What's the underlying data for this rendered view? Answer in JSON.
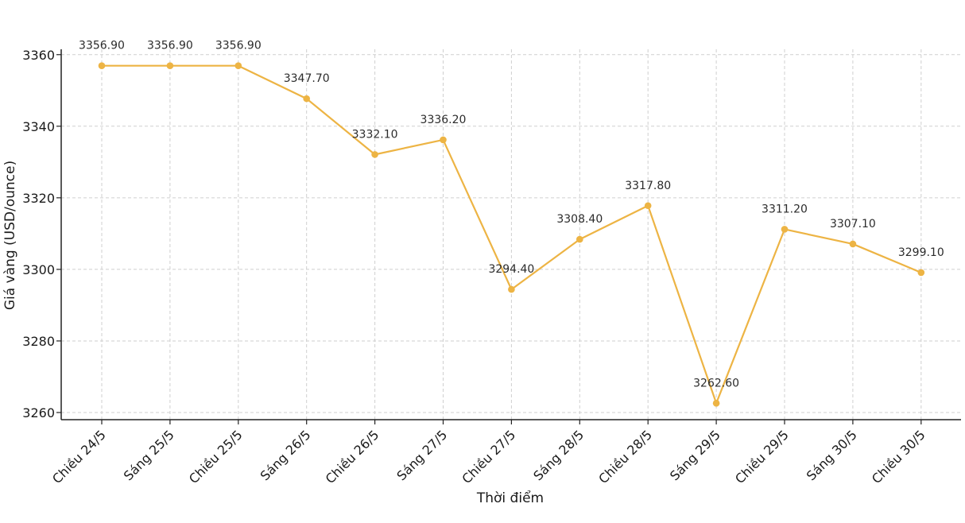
{
  "chart_data": {
    "type": "line",
    "title": "",
    "xlabel": "Thời điểm",
    "ylabel": "Giá vàng (USD/ounce)",
    "categories": [
      "Chiều 24/5",
      "Sáng 25/5",
      "Chiều 25/5",
      "Sáng 26/5",
      "Chiều 26/5",
      "Sáng 27/5",
      "Chiều 27/5",
      "Sáng 28/5",
      "Chiều 28/5",
      "Sáng 29/5",
      "Chiều 29/5",
      "Sáng 30/5",
      "Chiều 30/5"
    ],
    "values": [
      3356.9,
      3356.9,
      3356.9,
      3347.7,
      3332.1,
      3336.2,
      3294.4,
      3308.4,
      3317.8,
      3262.6,
      3311.2,
      3307.1,
      3299.1
    ],
    "data_labels": [
      "3356.90",
      "3356.90",
      "3356.90",
      "3347.70",
      "3332.10",
      "3336.20",
      "3294.40",
      "3308.40",
      "3317.80",
      "3262.60",
      "3311.20",
      "3307.10",
      "3299.10"
    ],
    "yticks": [
      3260,
      3280,
      3300,
      3320,
      3340,
      3360
    ],
    "ylim": [
      3258,
      3361.5
    ],
    "grid": true,
    "legend": "none",
    "line_color": "#EDB444",
    "marker_color": "#EDB444"
  }
}
